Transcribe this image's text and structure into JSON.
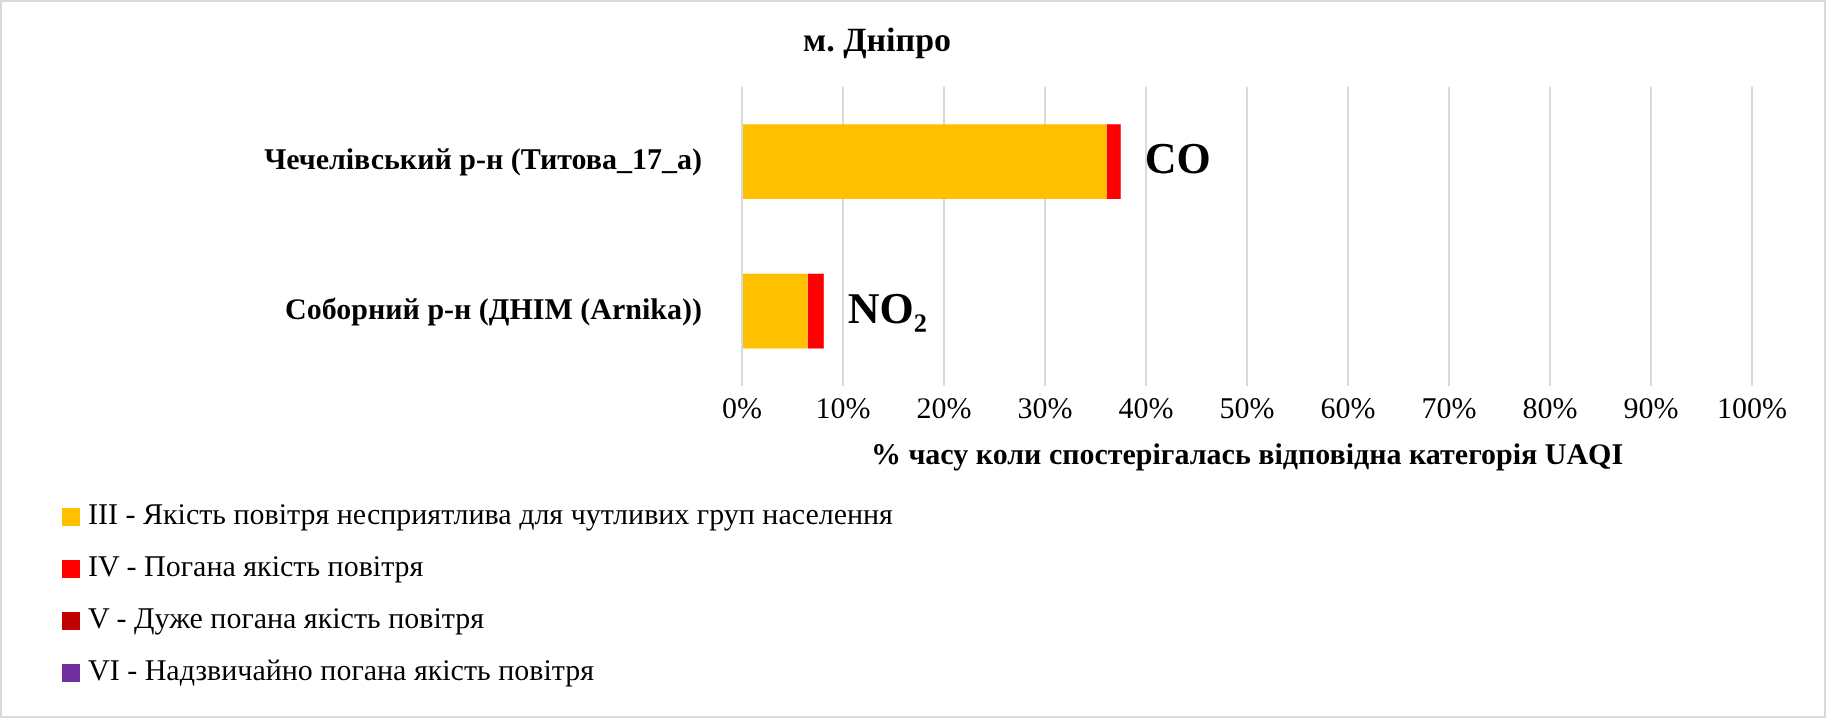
{
  "chart_data": {
    "type": "bar",
    "orientation": "horizontal",
    "stacked": true,
    "title": "м. Дніпро",
    "xlabel": "% часу коли спостерігалась відповідна категорія UAQI",
    "categories": [
      "Чечелівський р-н (Титова_17_а)",
      "Соборний р-н (ДНІМ (Arnika))"
    ],
    "series": [
      {
        "name": "III - Якість повітря несприятлива для чутливих груп населення",
        "color": "#ffc000",
        "values": [
          36.1,
          6.5
        ]
      },
      {
        "name": "IV - Погана якість повітря",
        "color": "#ff0000",
        "values": [
          1.4,
          1.6
        ]
      },
      {
        "name": "V - Дуже погана якість повітря",
        "color": "#c00000",
        "values": [
          0,
          0
        ]
      },
      {
        "name": "VI - Надзвичайно погана якість повітря",
        "color": "#7030a0",
        "values": [
          0,
          0
        ]
      }
    ],
    "xlim": [
      0,
      100
    ],
    "xticks": [
      {
        "value": 0,
        "label": "0%"
      },
      {
        "value": 10,
        "label": "10%"
      },
      {
        "value": 20,
        "label": "20%"
      },
      {
        "value": 30,
        "label": "30%"
      },
      {
        "value": 40,
        "label": "40%"
      },
      {
        "value": 50,
        "label": "50%"
      },
      {
        "value": 60,
        "label": "60%"
      },
      {
        "value": 70,
        "label": "70%"
      },
      {
        "value": 80,
        "label": "80%"
      },
      {
        "value": 90,
        "label": "90%"
      },
      {
        "value": 100,
        "label": "100%"
      }
    ],
    "annotations": [
      {
        "text": "CO",
        "x": 37.5,
        "y": "Чечелівський р-н (Титова_17_а)"
      },
      {
        "text": "NO₂",
        "x": 8.1,
        "y": "Соборний р-н (ДНІМ (Arnika))"
      }
    ],
    "grid": "x",
    "legend": "bottom left"
  }
}
